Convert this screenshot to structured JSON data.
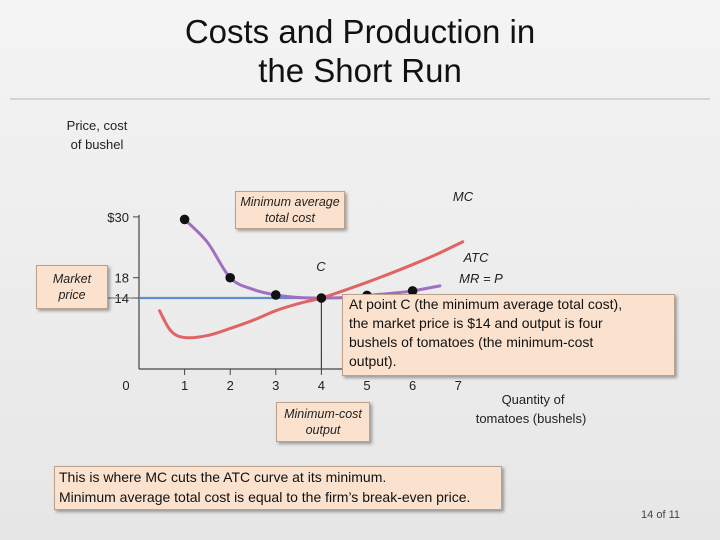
{
  "slide": {
    "title_line1": "Costs and Production in",
    "title_line2": "the Short Run",
    "page_number": "14 of 11"
  },
  "chart_data": {
    "type": "line",
    "ylabel_line1": "Price, cost",
    "ylabel_line2": "of bushel",
    "xlabel_line1": "Quantity of",
    "xlabel_line2": "tomatoes (bushels)",
    "x_ticks": [
      "0",
      "1",
      "2",
      "3",
      "4",
      "5",
      "6",
      "7"
    ],
    "y_ticks": [
      {
        "value": 30,
        "label": "$30"
      },
      {
        "value": 18,
        "label": "18"
      },
      {
        "value": 14,
        "label": "14"
      }
    ],
    "xlim": [
      0,
      7.7
    ],
    "ylim": [
      0,
      31
    ],
    "series": [
      {
        "name": "ATC",
        "color": "#a070c0",
        "points": [
          [
            1,
            29.5
          ],
          [
            1.5,
            25
          ],
          [
            2,
            18
          ],
          [
            2.5,
            15.7
          ],
          [
            3,
            14.6
          ],
          [
            3.5,
            14.1
          ],
          [
            4,
            14
          ],
          [
            4.5,
            14.1
          ],
          [
            5,
            14.5
          ],
          [
            5.5,
            14.9
          ],
          [
            6,
            15.4
          ],
          [
            6.6,
            16.4
          ]
        ]
      },
      {
        "name": "MC",
        "color": "#e06464",
        "points": [
          [
            0.45,
            11.5
          ],
          [
            0.7,
            7.5
          ],
          [
            1.0,
            6.2
          ],
          [
            1.5,
            6.6
          ],
          [
            2,
            8.0
          ],
          [
            2.5,
            9.6
          ],
          [
            3,
            11.5
          ],
          [
            3.5,
            12.9
          ],
          [
            4,
            14
          ],
          [
            4.5,
            15.5
          ],
          [
            5,
            17.1
          ],
          [
            5.5,
            18.8
          ],
          [
            6,
            20.6
          ],
          [
            6.5,
            22.5
          ],
          [
            7.1,
            25.1
          ]
        ]
      }
    ],
    "markers": [
      {
        "x": 1,
        "y": 29.5
      },
      {
        "x": 2,
        "y": 18
      },
      {
        "x": 3,
        "y": 14.6
      },
      {
        "x": 4,
        "y": 14
      },
      {
        "x": 5,
        "y": 14.5
      },
      {
        "x": 6,
        "y": 15.4
      }
    ],
    "mr_line": {
      "price": 14,
      "label": "MR = P",
      "color": "#5b8fd0"
    },
    "min_point": {
      "x": 4,
      "y": 14,
      "label": "C"
    },
    "curve_labels": {
      "mc": "MC",
      "atc": "ATC"
    },
    "market_price_label_line1": "Market",
    "market_price_label_line2": "price",
    "min_avg_total_cost_line1": "Minimum average",
    "min_avg_total_cost_line2": "total cost",
    "min_cost_output_line1": "Minimum-cost",
    "min_cost_output_line2": "output"
  },
  "notes": {
    "point_c_line1": "At point C (the minimum average total cost),",
    "point_c_line2": "the market price is $14 and output is four",
    "point_c_line3": "bushels of tomatoes (the minimum-cost",
    "point_c_line4": "output).",
    "bottom_line1": "This is where MC cuts the ATC curve at its minimum.",
    "bottom_line2": "Minimum average total cost is equal to the firm’s break-even price."
  }
}
